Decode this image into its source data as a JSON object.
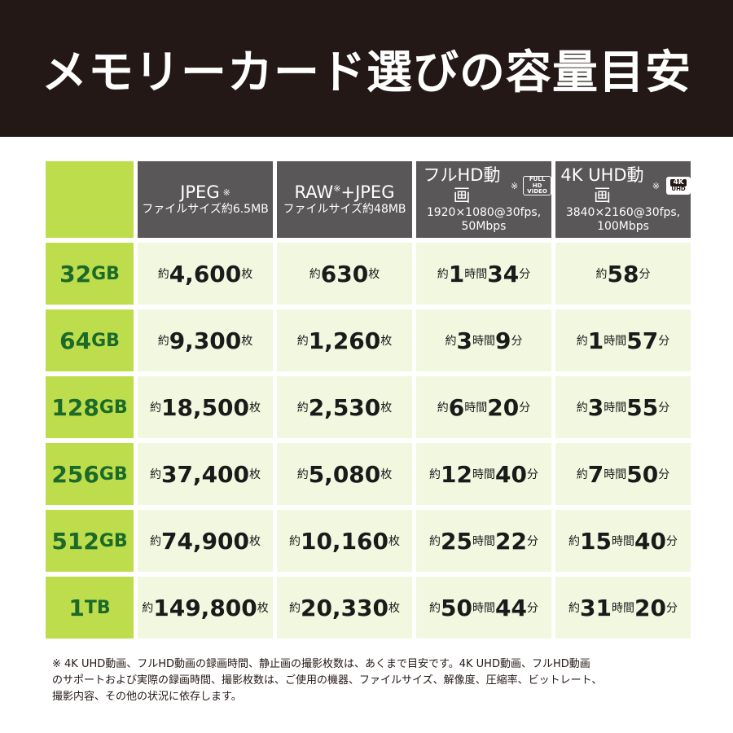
{
  "title": "メモリーカード選びの容量目安",
  "headers": [
    {
      "line1": "JPEG",
      "mark": "※",
      "line1b": "",
      "sub1": "ファイルサイズ約6.5MB",
      "sub2": ""
    },
    {
      "line1": "RAW",
      "mark": "※",
      "line1b": "+JPEG",
      "sub1": "ファイルサイズ約48MB",
      "sub2": ""
    },
    {
      "line1": "フルHD動画",
      "mark": "※",
      "line1b": "",
      "sub1": "1920×1080@30fps,",
      "sub2": "50Mbps"
    },
    {
      "line1": "4K UHD動画",
      "mark": "※",
      "line1b": "",
      "sub1": "3840×2160@30fps,",
      "sub2": "100Mbps"
    }
  ],
  "badges": {
    "fullhd": [
      "FULL HD",
      "VIDEO"
    ],
    "uhd": [
      "4K",
      "UHD"
    ]
  },
  "rows": [
    {
      "num": "32",
      "unit": "GB",
      "cells": [
        [
          [
            "s",
            "約"
          ],
          [
            "b",
            "4,600"
          ],
          [
            "s",
            "枚"
          ]
        ],
        [
          [
            "s",
            "約"
          ],
          [
            "b",
            "630"
          ],
          [
            "s",
            "枚"
          ]
        ],
        [
          [
            "s",
            "約"
          ],
          [
            "b",
            "1"
          ],
          [
            "s",
            "時間"
          ],
          [
            "b",
            "34"
          ],
          [
            "s",
            "分"
          ]
        ],
        [
          [
            "s",
            "約"
          ],
          [
            "b",
            "58"
          ],
          [
            "s",
            "分"
          ]
        ]
      ]
    },
    {
      "num": "64",
      "unit": "GB",
      "cells": [
        [
          [
            "s",
            "約"
          ],
          [
            "b",
            "9,300"
          ],
          [
            "s",
            "枚"
          ]
        ],
        [
          [
            "s",
            "約"
          ],
          [
            "b",
            "1,260"
          ],
          [
            "s",
            "枚"
          ]
        ],
        [
          [
            "s",
            "約"
          ],
          [
            "b",
            "3"
          ],
          [
            "s",
            "時間"
          ],
          [
            "b",
            "9"
          ],
          [
            "s",
            "分"
          ]
        ],
        [
          [
            "s",
            "約"
          ],
          [
            "b",
            "1"
          ],
          [
            "s",
            "時間"
          ],
          [
            "b",
            "57"
          ],
          [
            "s",
            "分"
          ]
        ]
      ]
    },
    {
      "num": "128",
      "unit": "GB",
      "cells": [
        [
          [
            "s",
            "約"
          ],
          [
            "b",
            "18,500"
          ],
          [
            "s",
            "枚"
          ]
        ],
        [
          [
            "s",
            "約"
          ],
          [
            "b",
            "2,530"
          ],
          [
            "s",
            "枚"
          ]
        ],
        [
          [
            "s",
            "約"
          ],
          [
            "b",
            "6"
          ],
          [
            "s",
            "時間"
          ],
          [
            "b",
            "20"
          ],
          [
            "s",
            "分"
          ]
        ],
        [
          [
            "s",
            "約"
          ],
          [
            "b",
            "3"
          ],
          [
            "s",
            "時間"
          ],
          [
            "b",
            "55"
          ],
          [
            "s",
            "分"
          ]
        ]
      ]
    },
    {
      "num": "256",
      "unit": "GB",
      "cells": [
        [
          [
            "s",
            "約"
          ],
          [
            "b",
            "37,400"
          ],
          [
            "s",
            "枚"
          ]
        ],
        [
          [
            "s",
            "約"
          ],
          [
            "b",
            "5,080"
          ],
          [
            "s",
            "枚"
          ]
        ],
        [
          [
            "s",
            "約"
          ],
          [
            "b",
            "12"
          ],
          [
            "s",
            "時間"
          ],
          [
            "b",
            "40"
          ],
          [
            "s",
            "分"
          ]
        ],
        [
          [
            "s",
            "約"
          ],
          [
            "b",
            "7"
          ],
          [
            "s",
            "時間"
          ],
          [
            "b",
            "50"
          ],
          [
            "s",
            "分"
          ]
        ]
      ]
    },
    {
      "num": "512",
      "unit": "GB",
      "cells": [
        [
          [
            "s",
            "約"
          ],
          [
            "b",
            "74,900"
          ],
          [
            "s",
            "枚"
          ]
        ],
        [
          [
            "s",
            "約"
          ],
          [
            "b",
            "10,160"
          ],
          [
            "s",
            "枚"
          ]
        ],
        [
          [
            "s",
            "約"
          ],
          [
            "b",
            "25"
          ],
          [
            "s",
            "時間"
          ],
          [
            "b",
            "22"
          ],
          [
            "s",
            "分"
          ]
        ],
        [
          [
            "s",
            "約"
          ],
          [
            "b",
            "15"
          ],
          [
            "s",
            "時間"
          ],
          [
            "b",
            "40"
          ],
          [
            "s",
            "分"
          ]
        ]
      ]
    },
    {
      "num": "1",
      "unit": "TB",
      "cells": [
        [
          [
            "s",
            "約"
          ],
          [
            "b",
            "149,800"
          ],
          [
            "s",
            "枚"
          ]
        ],
        [
          [
            "s",
            "約"
          ],
          [
            "b",
            "20,330"
          ],
          [
            "s",
            "枚"
          ]
        ],
        [
          [
            "s",
            "約"
          ],
          [
            "b",
            "50"
          ],
          [
            "s",
            "時間"
          ],
          [
            "b",
            "44"
          ],
          [
            "s",
            "分"
          ]
        ],
        [
          [
            "s",
            "約"
          ],
          [
            "b",
            "31"
          ],
          [
            "s",
            "時間"
          ],
          [
            "b",
            "20"
          ],
          [
            "s",
            "分"
          ]
        ]
      ]
    }
  ],
  "note_lines": [
    "※ 4K UHD動画、フルHD動画の録画時間、静止画の撮影枚数は、あくまで目安です。4K UHD動画、フルHD動画",
    "のサポートおよび実際の録画時間、撮影枚数は、ご使用の機器、ファイルサイズ、解像度、圧縮率、ビットレート、",
    "撮影内容、その他の状況に依存します。"
  ],
  "colors": {
    "banner": "#231815",
    "header": "#595757",
    "lime": "#bedd4c",
    "cell": "#f2f7e0",
    "rowlabel": "#1b6a2a"
  }
}
